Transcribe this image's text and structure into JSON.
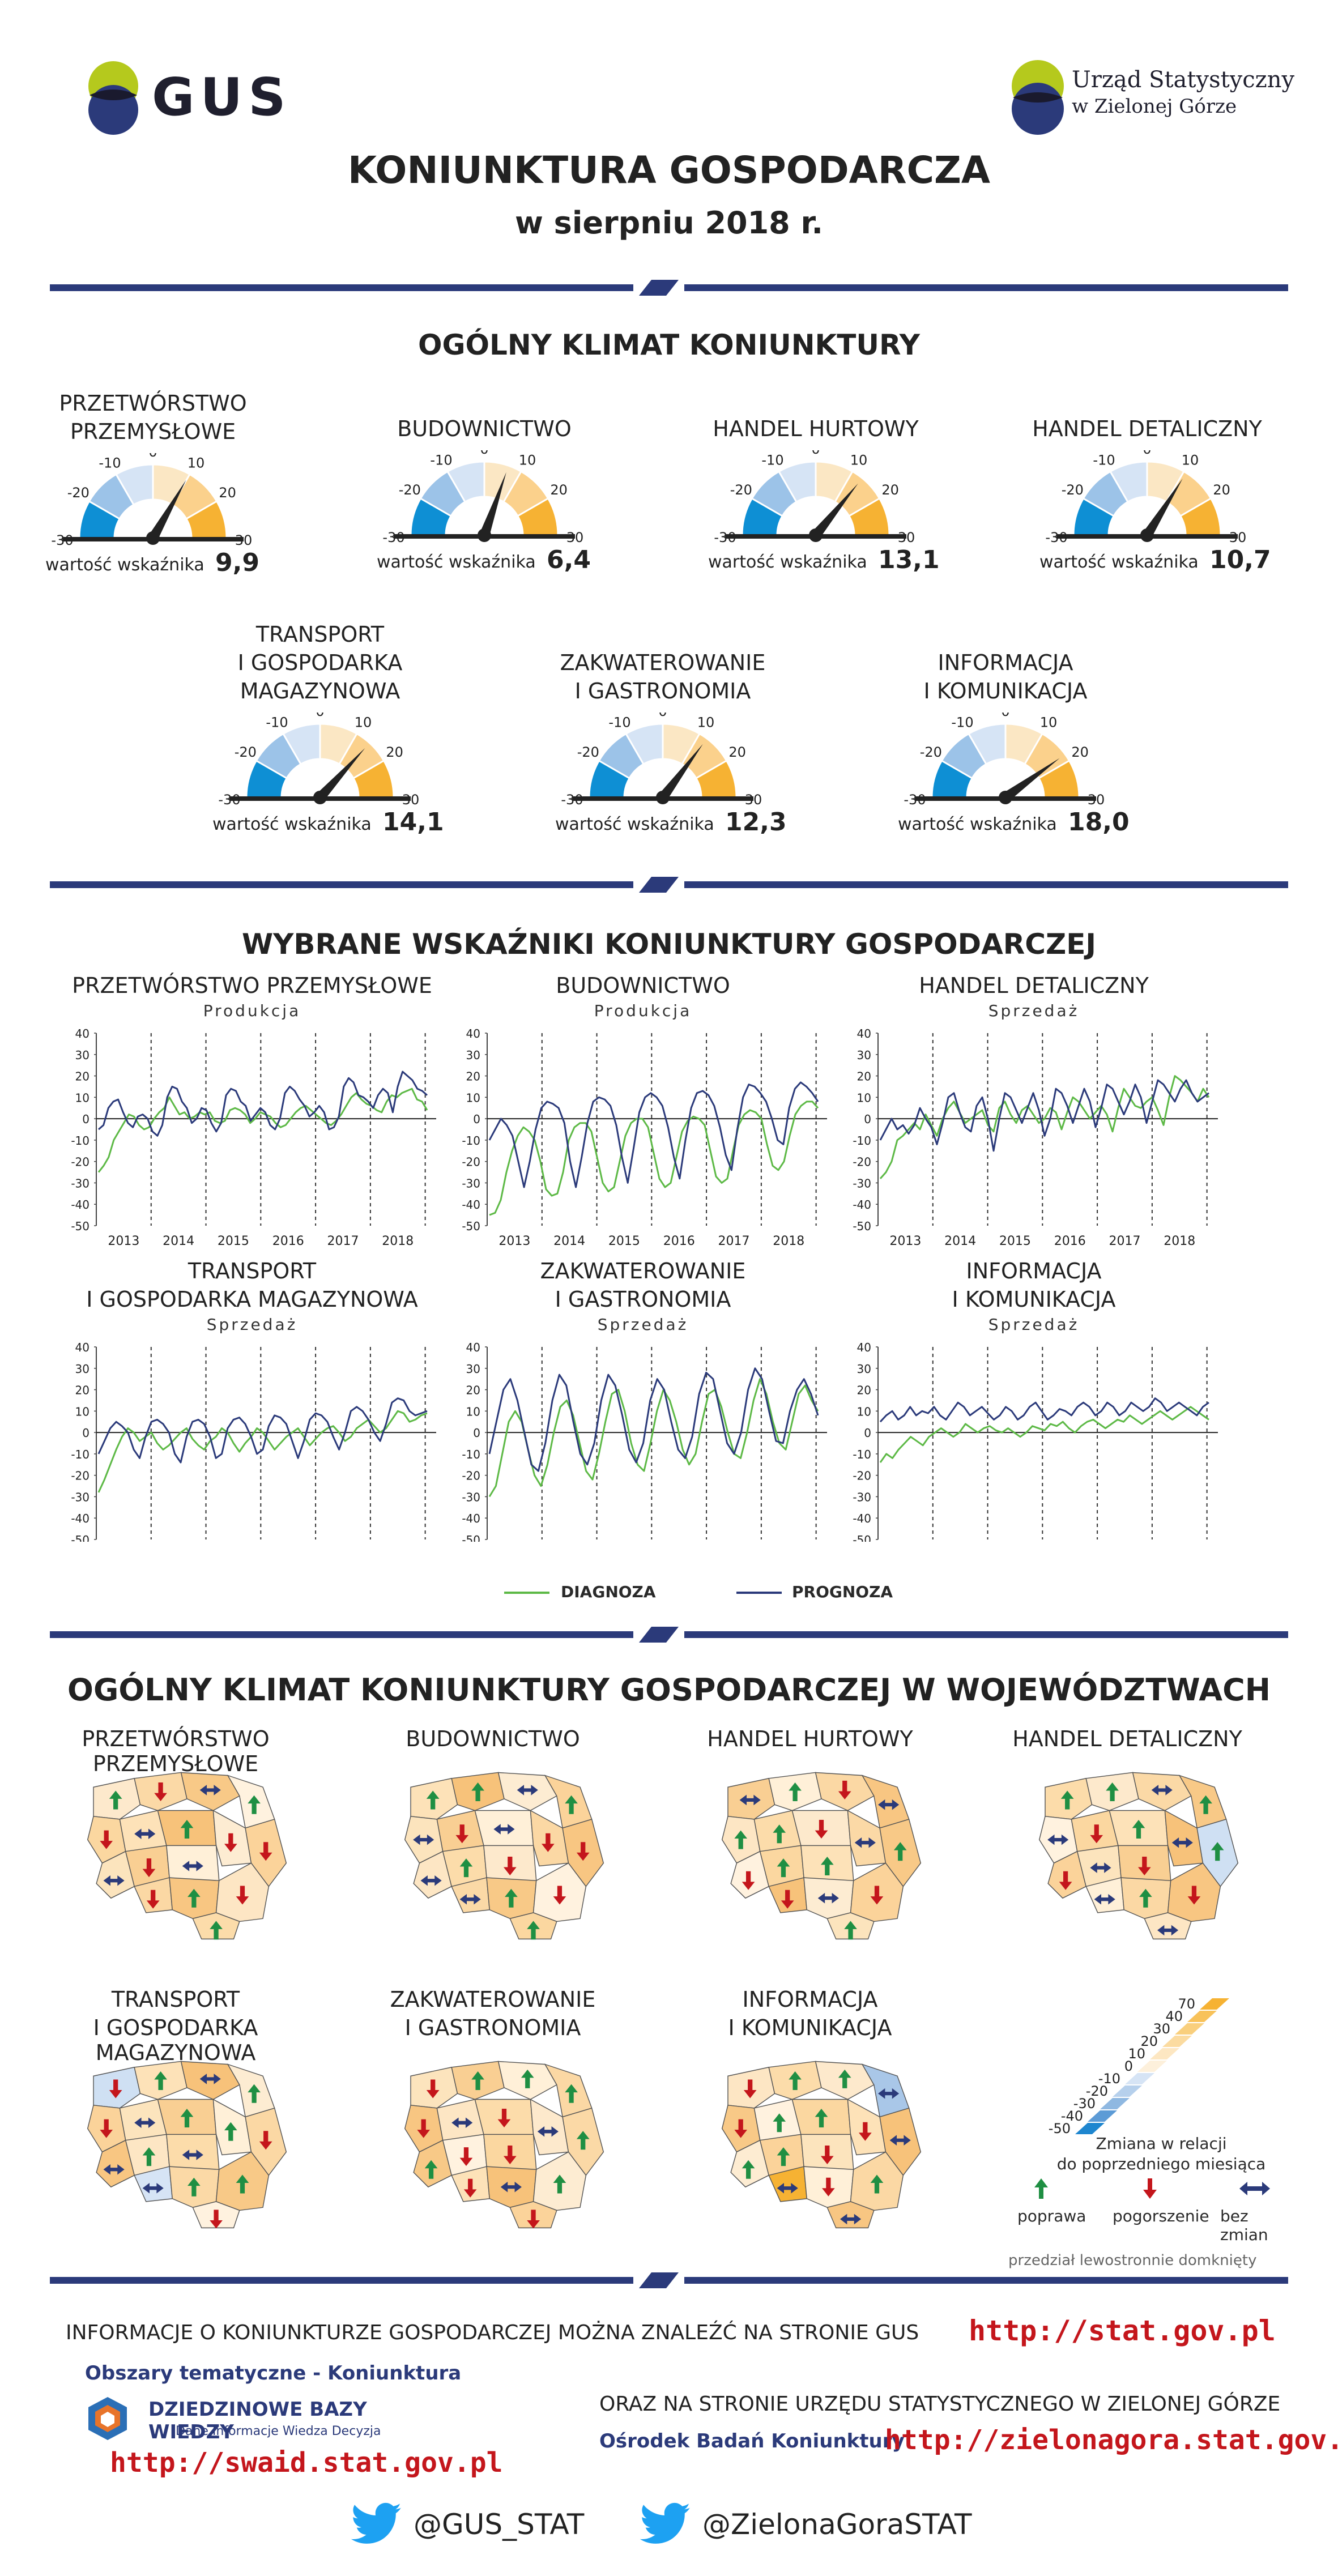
{
  "header": {
    "gus_logo_text": "GUS",
    "us_logo_line1": "Urząd Statystyczny",
    "us_logo_line2": "w Zielonej Górze",
    "title": "KONIUNKTURA GOSPODARCZA",
    "subtitle": "w sierpniu 2018 r."
  },
  "gauges": {
    "section_title": "OGÓLNY KLIMAT KONIUNKTURY",
    "value_label": "wartość wskaźnika",
    "scale": [
      "-30",
      "-20",
      "-10",
      "0",
      "10",
      "20",
      "30"
    ],
    "colors": {
      "neg_dark": "#0e8fd4",
      "neg_mid": "#9cc3e8",
      "neg_light": "#d6e4f5",
      "pos_light": "#fbe7c4",
      "pos_mid": "#fbd18c",
      "pos_dark": "#f6b233"
    },
    "items": [
      {
        "line1": "PRZETWÓRSTWO",
        "line2": "PRZEMYSŁOWE",
        "line3": "",
        "value": 9.9,
        "value_text": "9,9"
      },
      {
        "line1": "BUDOWNICTWO",
        "line2": "",
        "line3": "",
        "value": 6.4,
        "value_text": "6,4"
      },
      {
        "line1": "HANDEL HURTOWY",
        "line2": "",
        "line3": "",
        "value": 13.1,
        "value_text": "13,1"
      },
      {
        "line1": "HANDEL DETALICZNY",
        "line2": "",
        "line3": "",
        "value": 10.7,
        "value_text": "10,7"
      },
      {
        "line1": "TRANSPORT",
        "line2": "I GOSPODARKA",
        "line3": "MAGAZYNOWA",
        "value": 14.1,
        "value_text": "14,1"
      },
      {
        "line1": "ZAKWATEROWANIE",
        "line2": "I GASTRONOMIA",
        "line3": "",
        "value": 12.3,
        "value_text": "12,3"
      },
      {
        "line1": "INFORMACJA",
        "line2": "I KOMUNIKACJA",
        "line3": "",
        "value": 18.0,
        "value_text": "18,0"
      }
    ]
  },
  "chart_data": {
    "section_title": "WYBRANE WSKAŹNIKI KONIUNKTURY GOSPODARCZEJ",
    "type": "line",
    "ylim": [
      -50,
      40
    ],
    "yticks": [
      "40",
      "30",
      "20",
      "10",
      "0",
      "-10",
      "-20",
      "-30",
      "-40",
      "-50"
    ],
    "years": [
      "2013",
      "2014",
      "2015",
      "2016",
      "2017",
      "2018"
    ],
    "legend": {
      "diagnoza": "DIAGNOZA",
      "prognoza": "PROGNOZA",
      "diagnoza_color": "#5db946",
      "prognoza_color": "#2b3a7a"
    },
    "panels": [
      {
        "title1": "PRZETWÓRSTWO PRZEMYSŁOWE",
        "title2": "",
        "sub": "Produkcja",
        "diagnoza": [
          -25,
          -22,
          -18,
          -10,
          -6,
          -2,
          2,
          1,
          -3,
          -5,
          -4,
          0,
          3,
          5,
          10,
          6,
          2,
          3,
          0,
          1,
          3,
          2,
          3,
          -1,
          -2,
          -1,
          4,
          5,
          4,
          2,
          -2,
          0,
          3,
          2,
          1,
          -2,
          -4,
          -3,
          0,
          3,
          5,
          6,
          4,
          2,
          0,
          -2,
          -3,
          -1,
          2,
          6,
          10,
          12,
          9,
          7,
          6,
          4,
          3,
          8,
          11,
          10,
          12,
          13,
          14,
          9,
          8,
          4
        ],
        "prognoza": [
          -5,
          -3,
          5,
          8,
          9,
          3,
          -2,
          -4,
          1,
          2,
          0,
          -6,
          -8,
          -3,
          10,
          15,
          14,
          8,
          5,
          -2,
          0,
          5,
          4,
          -2,
          -6,
          -2,
          11,
          14,
          13,
          8,
          6,
          -1,
          2,
          5,
          3,
          -3,
          -5,
          0,
          12,
          15,
          13,
          9,
          6,
          1,
          3,
          6,
          3,
          -5,
          -4,
          1,
          15,
          19,
          17,
          11,
          10,
          8,
          5,
          11,
          14,
          12,
          3,
          15,
          22,
          20,
          18,
          14,
          13,
          11
        ]
      },
      {
        "title1": "BUDOWNICTWO",
        "title2": "",
        "sub": "Produkcja",
        "diagnoza": [
          -45,
          -44,
          -38,
          -25,
          -15,
          -8,
          -4,
          -6,
          -10,
          -20,
          -33,
          -36,
          -35,
          -25,
          -10,
          -4,
          -2,
          -2,
          -6,
          -18,
          -30,
          -34,
          -32,
          -20,
          -8,
          -2,
          0,
          0,
          -4,
          -16,
          -28,
          -32,
          -30,
          -18,
          -6,
          -1,
          1,
          0,
          -3,
          -15,
          -27,
          -30,
          -28,
          -15,
          -3,
          2,
          4,
          3,
          0,
          -12,
          -22,
          -24,
          -20,
          -8,
          2,
          6,
          8,
          8,
          5
        ],
        "prognoza": [
          -10,
          -5,
          0,
          -3,
          -8,
          -20,
          -32,
          -20,
          -5,
          5,
          8,
          7,
          5,
          -2,
          -20,
          -32,
          -18,
          -2,
          8,
          10,
          9,
          6,
          -3,
          -18,
          -30,
          -14,
          3,
          10,
          12,
          10,
          6,
          -4,
          -18,
          -28,
          -10,
          5,
          12,
          13,
          11,
          6,
          -4,
          -17,
          -24,
          -5,
          10,
          16,
          15,
          12,
          8,
          0,
          -10,
          -12,
          5,
          14,
          17,
          15,
          12,
          8
        ]
      },
      {
        "title1": "HANDEL DETALICZNY",
        "title2": "",
        "sub": "Sprzedaż",
        "diagnoza": [
          -28,
          -25,
          -20,
          -10,
          -8,
          -5,
          -2,
          -5,
          2,
          -3,
          -8,
          0,
          5,
          8,
          3,
          -2,
          0,
          2,
          4,
          -3,
          -6,
          5,
          8,
          2,
          -2,
          4,
          6,
          2,
          -2,
          0,
          5,
          3,
          -5,
          3,
          10,
          8,
          4,
          0,
          3,
          6,
          2,
          -6,
          5,
          14,
          10,
          6,
          5,
          8,
          10,
          4,
          -3,
          10,
          20,
          18,
          15,
          12,
          8,
          14,
          10
        ],
        "prognoza": [
          -10,
          -5,
          0,
          -5,
          -3,
          -7,
          -3,
          5,
          0,
          -4,
          -12,
          -2,
          10,
          12,
          3,
          -4,
          -6,
          6,
          10,
          0,
          -15,
          0,
          12,
          10,
          4,
          -2,
          5,
          12,
          4,
          -8,
          0,
          14,
          12,
          6,
          -2,
          6,
          14,
          8,
          -4,
          5,
          16,
          14,
          8,
          2,
          8,
          16,
          10,
          -2,
          8,
          18,
          16,
          12,
          8,
          14,
          18,
          12,
          8,
          10,
          12
        ]
      },
      {
        "title1": "TRANSPORT",
        "title2": "I GOSPODARKA MAGAZYNOWA",
        "sub": "Sprzedaż",
        "diagnoza": [
          -28,
          -22,
          -15,
          -8,
          -2,
          2,
          0,
          -4,
          -2,
          0,
          -5,
          -8,
          -6,
          -3,
          0,
          2,
          -3,
          -6,
          -8,
          -4,
          -2,
          2,
          0,
          -5,
          -9,
          -5,
          -2,
          2,
          0,
          -4,
          -8,
          -5,
          -2,
          0,
          2,
          -2,
          -6,
          -3,
          0,
          2,
          3,
          0,
          -4,
          -2,
          2,
          4,
          6,
          3,
          0,
          2,
          6,
          10,
          9,
          5,
          6,
          8,
          9
        ],
        "prognoza": [
          -10,
          -4,
          2,
          5,
          3,
          0,
          -8,
          -12,
          -2,
          5,
          6,
          4,
          0,
          -10,
          -14,
          -2,
          5,
          6,
          4,
          -2,
          -12,
          -10,
          2,
          6,
          7,
          4,
          -2,
          -10,
          -8,
          3,
          8,
          7,
          4,
          -4,
          -12,
          -4,
          6,
          9,
          8,
          5,
          -2,
          -8,
          0,
          10,
          12,
          10,
          6,
          0,
          -4,
          4,
          14,
          16,
          15,
          10,
          8,
          9,
          10
        ]
      },
      {
        "title1": "ZAKWATEROWANIE",
        "title2": "I GASTRONOMIA",
        "sub": "Sprzedaż",
        "diagnoza": [
          -30,
          -25,
          -10,
          5,
          10,
          5,
          -8,
          -20,
          -25,
          -15,
          0,
          12,
          15,
          8,
          -5,
          -18,
          -22,
          -10,
          5,
          18,
          20,
          10,
          -5,
          -15,
          -18,
          -5,
          10,
          20,
          15,
          5,
          -8,
          -15,
          -10,
          5,
          18,
          20,
          12,
          0,
          -10,
          -12,
          0,
          15,
          25,
          18,
          5,
          -5,
          -8,
          5,
          18,
          22,
          15,
          10
        ],
        "prognoza": [
          -10,
          5,
          20,
          25,
          15,
          0,
          -15,
          -18,
          -5,
          15,
          27,
          22,
          5,
          -10,
          -15,
          -5,
          15,
          27,
          22,
          8,
          -8,
          -14,
          -5,
          15,
          25,
          20,
          5,
          -8,
          -12,
          -2,
          18,
          28,
          25,
          10,
          -5,
          -10,
          0,
          20,
          30,
          25,
          10,
          -4,
          -5,
          10,
          20,
          25,
          18,
          8
        ]
      },
      {
        "title1": "INFORMACJA",
        "title2": "I KOMUNIKACJA",
        "sub": "Sprzedaż",
        "diagnoza": [
          -14,
          -10,
          -12,
          -8,
          -5,
          -2,
          -4,
          -6,
          -2,
          0,
          2,
          0,
          -2,
          0,
          4,
          2,
          0,
          2,
          3,
          1,
          0,
          2,
          0,
          -2,
          0,
          3,
          2,
          1,
          4,
          3,
          5,
          2,
          0,
          3,
          5,
          6,
          4,
          2,
          4,
          6,
          5,
          8,
          6,
          4,
          6,
          8,
          10,
          8,
          6,
          8,
          10,
          12,
          10,
          8,
          6
        ],
        "prognoza": [
          5,
          8,
          10,
          6,
          8,
          12,
          8,
          10,
          9,
          12,
          8,
          6,
          10,
          14,
          12,
          8,
          10,
          12,
          9,
          6,
          8,
          12,
          10,
          6,
          8,
          12,
          14,
          10,
          6,
          8,
          11,
          10,
          8,
          12,
          14,
          12,
          8,
          10,
          14,
          12,
          8,
          10,
          14,
          12,
          10,
          12,
          16,
          14,
          10,
          12,
          14,
          12,
          10,
          8,
          12,
          14
        ]
      }
    ]
  },
  "maps": {
    "section_title": "OGÓLNY KLIMAT KONIUNKTURY GOSPODARCZEJ W WOJEWÓDZTWACH",
    "items": [
      {
        "line1": "PRZETWÓRSTWO PRZEMYSŁOWE",
        "line2": ""
      },
      {
        "line1": "BUDOWNICTWO",
        "line2": ""
      },
      {
        "line1": "HANDEL HURTOWY",
        "line2": ""
      },
      {
        "line1": "HANDEL DETALICZNY",
        "line2": ""
      },
      {
        "line1": "TRANSPORT",
        "line2": "I GOSPODARKA MAGAZYNOWA"
      },
      {
        "line1": "ZAKWATEROWANIE",
        "line2": "I GASTRONOMIA"
      },
      {
        "line1": "INFORMACJA",
        "line2": "I KOMUNIKACJA"
      }
    ],
    "scale": [
      "70",
      "40",
      "30",
      "20",
      "10",
      "0",
      "-10",
      "-20",
      "-30",
      "-40",
      "-50"
    ],
    "legend_title1": "Zmiana w relacji",
    "legend_title2": "do poprzedniego miesiąca",
    "legend_up": "poprawa",
    "legend_down": "pogorszenie",
    "legend_same": "bez zmian",
    "note": "przedział lewostronnie domknięty"
  },
  "footer": {
    "info_text": "INFORMACJE  O KONIUNKTURZE GOSPODARCZEJ MOŻNA ZNALEŹĆ NA STRONIE GUS",
    "gus_url": "http://stat.gov.pl",
    "topics_text": "Obszary tematyczne - Koniunktura",
    "dbw_title": "DZIEDZINOWE BAZY WIEDZY",
    "dbw_sub": "Dane   Informacje   Wiedza   Decyzja",
    "swaid_url": "http://swaid.stat.gov.pl",
    "also_text": "ORAZ NA STRONIE URZĘDU STATYSTYCZNEGO W ZIELONEJ GÓRZE",
    "obk_text": "Ośrodek Badań Koniunktury",
    "zg_url": "http://zielonagora.stat.gov.pl",
    "twitter1": "@GUS_STAT",
    "twitter2": "@ZielonaGoraSTAT"
  }
}
